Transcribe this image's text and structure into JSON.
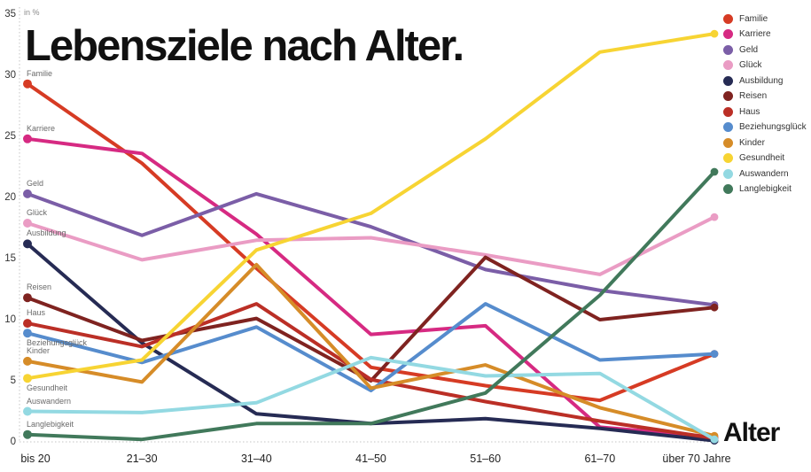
{
  "title": "Lebensziele nach Alter.",
  "chart_data": {
    "type": "line",
    "title": "Lebensziele nach Alter.",
    "xlabel": "Alter",
    "ylabel": "in %",
    "ylim": [
      0,
      35
    ],
    "y_ticks": [
      0,
      5,
      10,
      15,
      20,
      25,
      30,
      35
    ],
    "grid": "dotted axis lines only (left edge and baseline)",
    "legend_position": "right",
    "categories": [
      "bis 20",
      "21–30",
      "31–40",
      "41–50",
      "51–60",
      "61–70",
      "über 70 Jahre"
    ],
    "series": [
      {
        "name": "Familie",
        "color": "#d63b24",
        "label_side": "above",
        "values": [
          29.3,
          22.8,
          14.2,
          6.1,
          4.6,
          3.4,
          7.2
        ]
      },
      {
        "name": "Karriere",
        "color": "#d62a82",
        "label_side": "above",
        "values": [
          24.8,
          23.6,
          17.0,
          8.8,
          9.5,
          1.2,
          0.4
        ]
      },
      {
        "name": "Geld",
        "color": "#7b5ea7",
        "label_side": "above",
        "values": [
          20.3,
          16.9,
          20.3,
          17.6,
          14.1,
          12.4,
          11.2
        ]
      },
      {
        "name": "Glück",
        "color": "#ea9cc4",
        "label_side": "above",
        "values": [
          17.9,
          14.9,
          16.5,
          16.7,
          15.3,
          13.7,
          18.4
        ]
      },
      {
        "name": "Ausbildung",
        "color": "#262b54",
        "label_side": "above",
        "values": [
          16.2,
          8.1,
          2.3,
          1.5,
          1.9,
          1.1,
          0.1
        ]
      },
      {
        "name": "Reisen",
        "color": "#7f2320",
        "label_side": "above",
        "values": [
          11.8,
          8.3,
          10.1,
          5.0,
          15.1,
          10.0,
          11.0
        ]
      },
      {
        "name": "Haus",
        "color": "#bb2f26",
        "label_side": "above",
        "values": [
          9.7,
          7.8,
          11.3,
          5.1,
          3.3,
          1.7,
          0.3
        ]
      },
      {
        "name": "Beziehungsglück",
        "color": "#568ccd",
        "label_side": "below",
        "values": [
          8.9,
          6.5,
          9.4,
          4.2,
          11.3,
          6.7,
          7.2
        ]
      },
      {
        "name": "Kinder",
        "color": "#d68c28",
        "label_side": "above",
        "values": [
          6.6,
          4.9,
          14.5,
          4.4,
          6.3,
          2.8,
          0.5
        ]
      },
      {
        "name": "Gesundheit",
        "color": "#f7d433",
        "label_side": "below",
        "values": [
          5.2,
          6.7,
          15.7,
          18.7,
          24.8,
          31.9,
          33.4
        ]
      },
      {
        "name": "Auswandern",
        "color": "#93d9e2",
        "label_side": "above",
        "values": [
          2.5,
          2.4,
          3.2,
          6.9,
          5.4,
          5.6,
          0.2
        ]
      },
      {
        "name": "Langlebigkeit",
        "color": "#41795b",
        "label_side": "above",
        "values": [
          0.6,
          0.2,
          1.5,
          1.5,
          4.0,
          12.0,
          22.1
        ]
      }
    ]
  },
  "axis_style": {
    "dotted_line_color": "#c4c4c4"
  }
}
